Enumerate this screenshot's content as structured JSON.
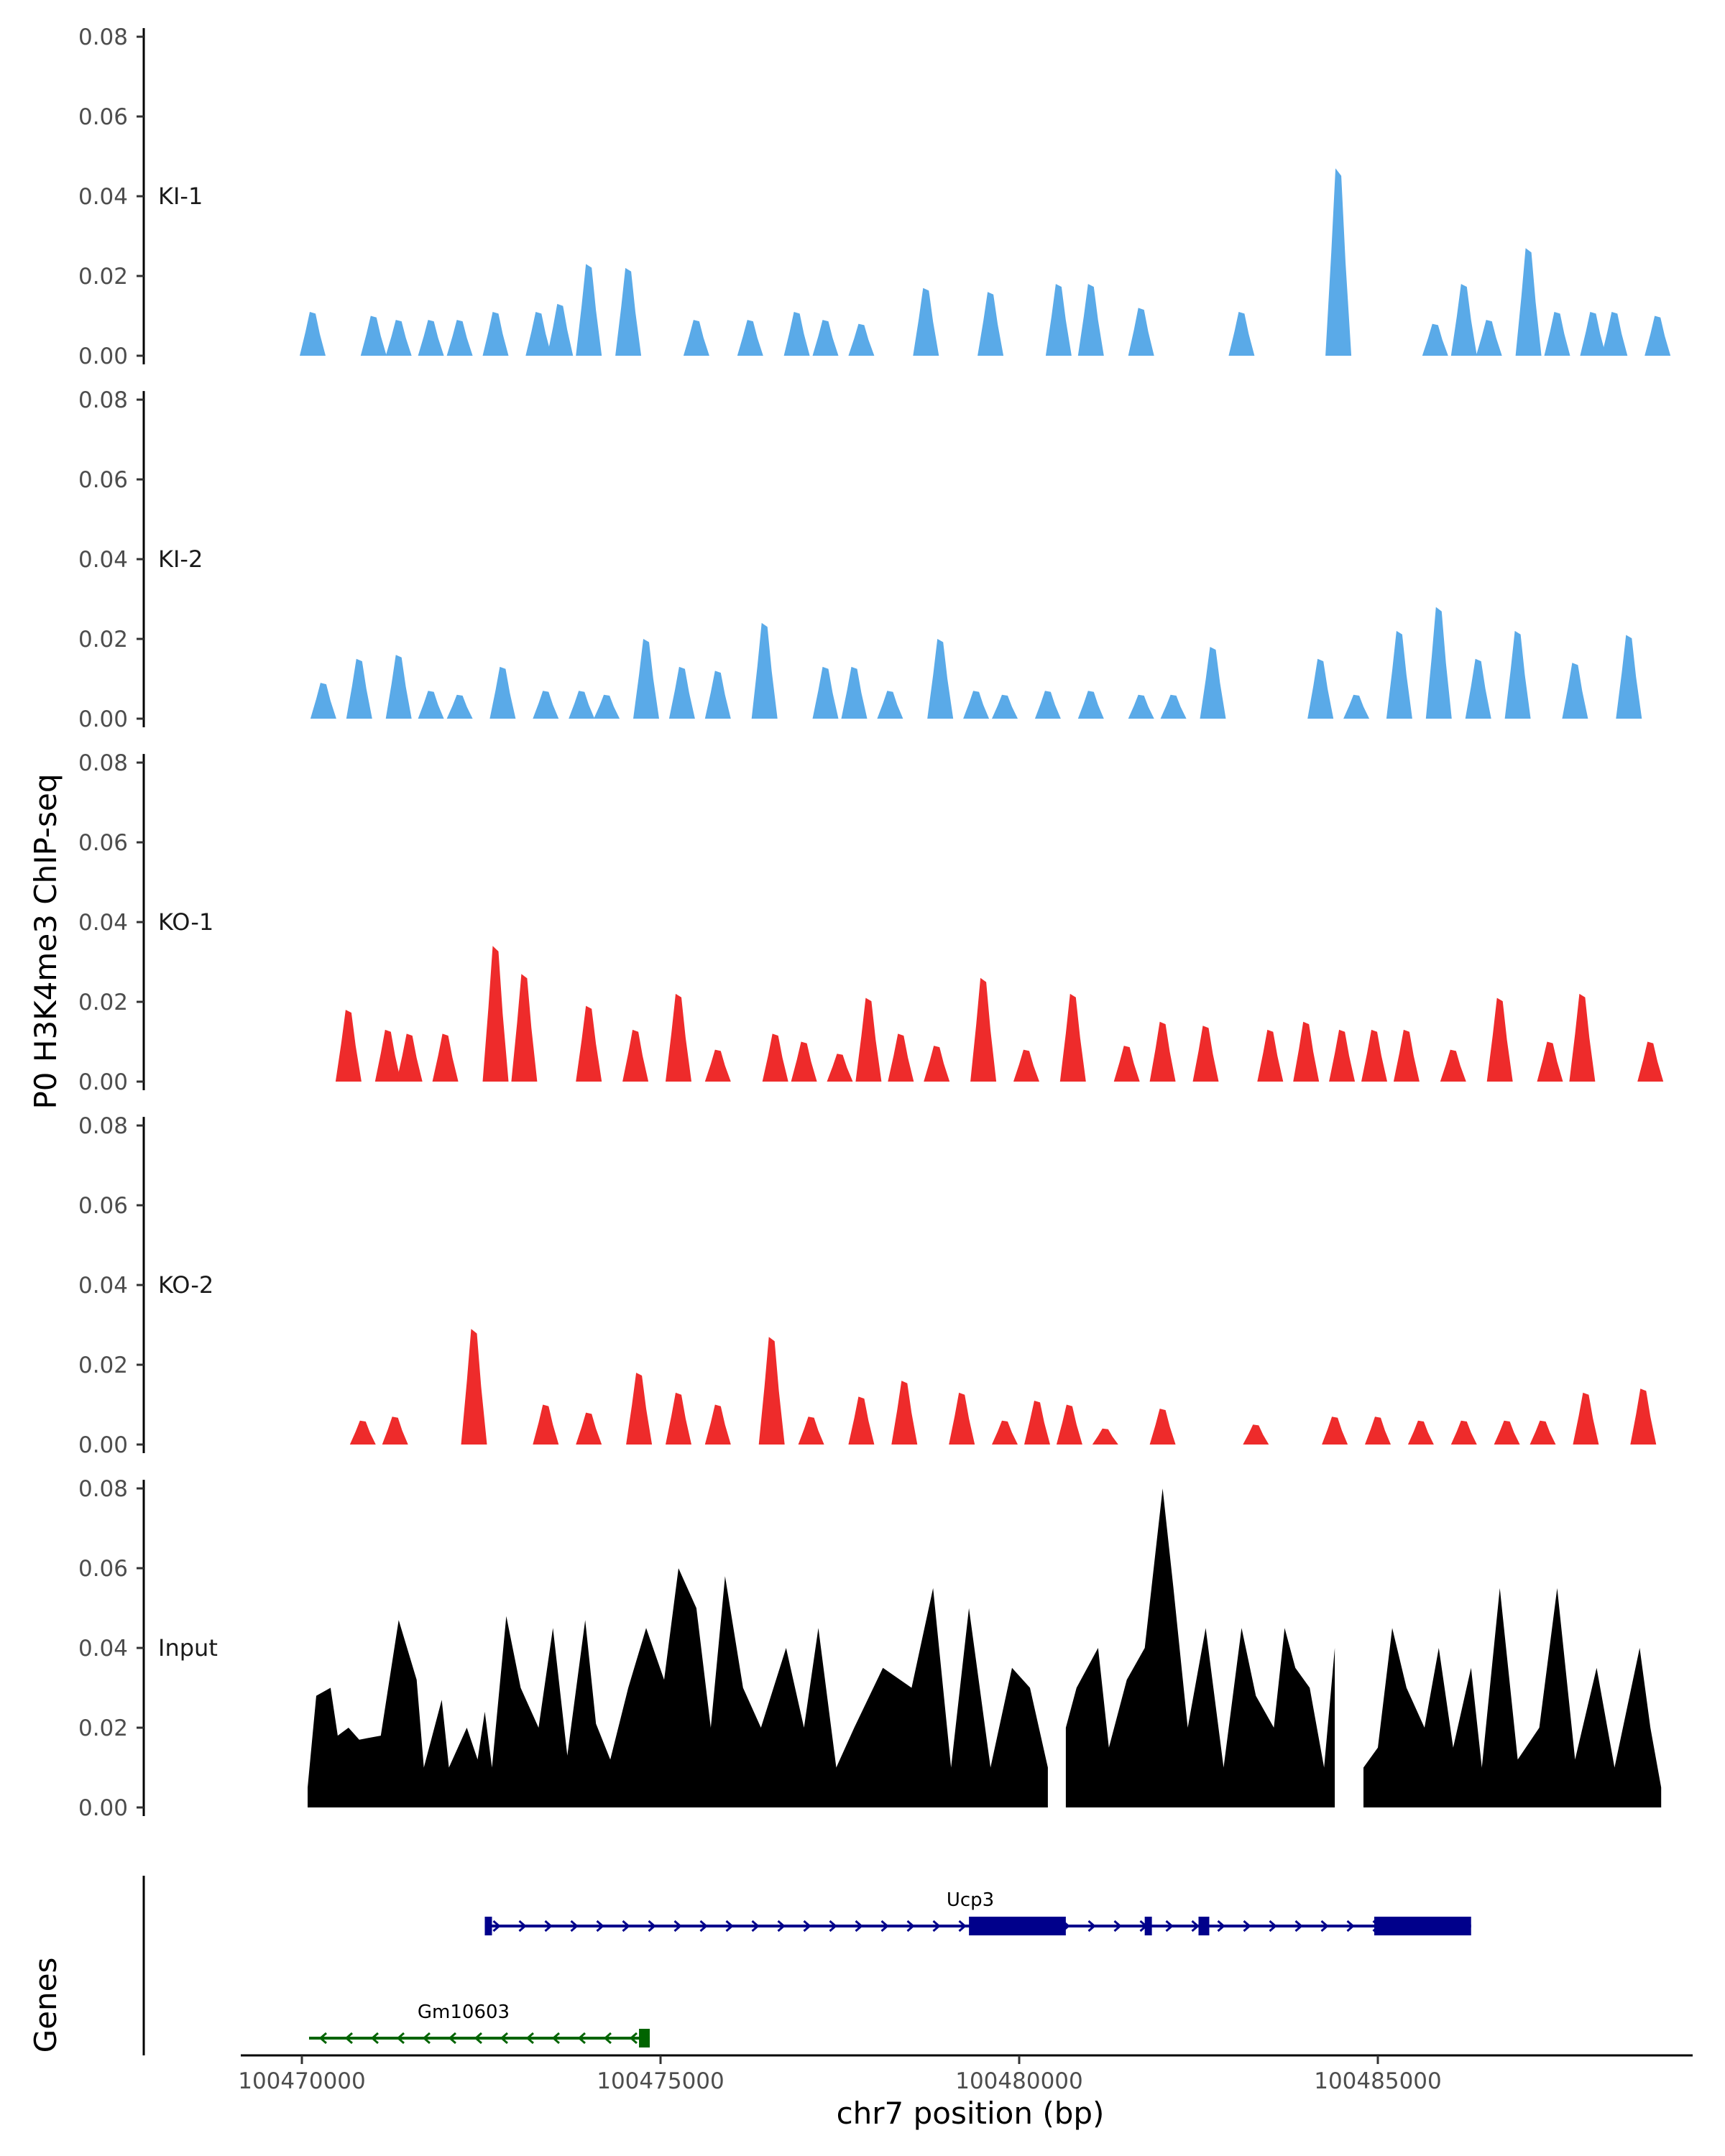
{
  "chart_data": {
    "type": "area",
    "title": "",
    "ylabel": "P0 H3K4me3 ChIP-seq",
    "xlabel": "chr7 position (bp)",
    "genes_label": "Genes",
    "xlim": [
      100469200,
      100489400
    ],
    "ylim": [
      0,
      0.082
    ],
    "x_ticks": [
      100470000,
      100475000,
      100480000,
      100485000
    ],
    "x_tick_labels": [
      "100470000",
      "100475000",
      "100480000",
      "100485000"
    ],
    "y_ticks": [
      0,
      0.02,
      0.04,
      0.06,
      0.08
    ],
    "y_tick_labels": [
      "0.00",
      "0.02",
      "0.04",
      "0.06",
      "0.08"
    ],
    "colors": {
      "KI": "#5aaae8",
      "KO": "#ee2b2b",
      "Input": "#000000",
      "gene_plus": "#00008b",
      "gene_minus": "#006400",
      "axis": "#000000"
    },
    "tracks": [
      {
        "name": "KI-1",
        "color": "#5aaae8",
        "peaks": [
          [
            100470150,
            0.011
          ],
          [
            100471000,
            0.01
          ],
          [
            100471350,
            0.009
          ],
          [
            100471800,
            0.009
          ],
          [
            100472200,
            0.009
          ],
          [
            100472700,
            0.011
          ],
          [
            100473300,
            0.011
          ],
          [
            100473600,
            0.013
          ],
          [
            100474000,
            0.023
          ],
          [
            100474550,
            0.022
          ],
          [
            100475500,
            0.009
          ],
          [
            100476250,
            0.009
          ],
          [
            100476900,
            0.011
          ],
          [
            100477300,
            0.009
          ],
          [
            100477800,
            0.008
          ],
          [
            100478700,
            0.017
          ],
          [
            100479600,
            0.016
          ],
          [
            100480550,
            0.018
          ],
          [
            100481000,
            0.018
          ],
          [
            100481700,
            0.012
          ],
          [
            100483100,
            0.011
          ],
          [
            100484450,
            0.047
          ],
          [
            100485800,
            0.008
          ],
          [
            100486200,
            0.018
          ],
          [
            100486550,
            0.009
          ],
          [
            100487100,
            0.027
          ],
          [
            100487500,
            0.011
          ],
          [
            100488000,
            0.011
          ],
          [
            100488300,
            0.011
          ],
          [
            100488900,
            0.01
          ]
        ]
      },
      {
        "name": "KI-2",
        "color": "#5aaae8",
        "peaks": [
          [
            100470300,
            0.009
          ],
          [
            100470800,
            0.015
          ],
          [
            100471350,
            0.016
          ],
          [
            100471800,
            0.007
          ],
          [
            100472200,
            0.006
          ],
          [
            100472800,
            0.013
          ],
          [
            100473400,
            0.007
          ],
          [
            100473900,
            0.007
          ],
          [
            100474250,
            0.006
          ],
          [
            100474800,
            0.02
          ],
          [
            100475300,
            0.013
          ],
          [
            100475800,
            0.012
          ],
          [
            100476450,
            0.024
          ],
          [
            100477300,
            0.013
          ],
          [
            100477700,
            0.013
          ],
          [
            100478200,
            0.007
          ],
          [
            100478900,
            0.02
          ],
          [
            100479400,
            0.007
          ],
          [
            100479800,
            0.006
          ],
          [
            100480400,
            0.007
          ],
          [
            100481000,
            0.007
          ],
          [
            100481700,
            0.006
          ],
          [
            100482150,
            0.006
          ],
          [
            100482700,
            0.018
          ],
          [
            100484200,
            0.015
          ],
          [
            100484700,
            0.006
          ],
          [
            100485300,
            0.022
          ],
          [
            100485850,
            0.028
          ],
          [
            100486400,
            0.015
          ],
          [
            100486950,
            0.022
          ],
          [
            100487750,
            0.014
          ],
          [
            100488500,
            0.021
          ]
        ]
      },
      {
        "name": "KO-1",
        "color": "#ee2b2b",
        "peaks": [
          [
            100470650,
            0.018
          ],
          [
            100471200,
            0.013
          ],
          [
            100471500,
            0.012
          ],
          [
            100472000,
            0.012
          ],
          [
            100472700,
            0.034
          ],
          [
            100473100,
            0.027
          ],
          [
            100474000,
            0.019
          ],
          [
            100474650,
            0.013
          ],
          [
            100475250,
            0.022
          ],
          [
            100475800,
            0.008
          ],
          [
            100476600,
            0.012
          ],
          [
            100477000,
            0.01
          ],
          [
            100477500,
            0.007
          ],
          [
            100477900,
            0.021
          ],
          [
            100478350,
            0.012
          ],
          [
            100478850,
            0.009
          ],
          [
            100479500,
            0.026
          ],
          [
            100480100,
            0.008
          ],
          [
            100480750,
            0.022
          ],
          [
            100481500,
            0.009
          ],
          [
            100482000,
            0.015
          ],
          [
            100482600,
            0.014
          ],
          [
            100483500,
            0.013
          ],
          [
            100484000,
            0.015
          ],
          [
            100484500,
            0.013
          ],
          [
            100484950,
            0.013
          ],
          [
            100485400,
            0.013
          ],
          [
            100486050,
            0.008
          ],
          [
            100486700,
            0.021
          ],
          [
            100487400,
            0.01
          ],
          [
            100487850,
            0.022
          ],
          [
            100488800,
            0.01
          ]
        ]
      },
      {
        "name": "KO-2",
        "color": "#ee2b2b",
        "peaks": [
          [
            100470850,
            0.006
          ],
          [
            100471300,
            0.007
          ],
          [
            100472400,
            0.029
          ],
          [
            100473400,
            0.01
          ],
          [
            100474000,
            0.008
          ],
          [
            100474700,
            0.018
          ],
          [
            100475250,
            0.013
          ],
          [
            100475800,
            0.01
          ],
          [
            100476550,
            0.027
          ],
          [
            100477100,
            0.007
          ],
          [
            100477800,
            0.012
          ],
          [
            100478400,
            0.016
          ],
          [
            100479200,
            0.013
          ],
          [
            100479800,
            0.006
          ],
          [
            100480250,
            0.011
          ],
          [
            100480700,
            0.01
          ],
          [
            100481200,
            0.004
          ],
          [
            100482000,
            0.009
          ],
          [
            100483300,
            0.005
          ],
          [
            100484400,
            0.007
          ],
          [
            100485000,
            0.007
          ],
          [
            100485600,
            0.006
          ],
          [
            100486200,
            0.006
          ],
          [
            100486800,
            0.006
          ],
          [
            100487300,
            0.006
          ],
          [
            100487900,
            0.013
          ],
          [
            100488700,
            0.014
          ]
        ]
      }
    ],
    "input_track": {
      "name": "Input",
      "color": "#000000",
      "points": [
        [
          100470080,
          0.005
        ],
        [
          100470200,
          0.028
        ],
        [
          100470400,
          0.03
        ],
        [
          100470500,
          0.018
        ],
        [
          100470650,
          0.02
        ],
        [
          100470800,
          0.017
        ],
        [
          100471100,
          0.018
        ],
        [
          100471350,
          0.047
        ],
        [
          100471600,
          0.032
        ],
        [
          100471700,
          0.01
        ],
        [
          100471950,
          0.027
        ],
        [
          100472050,
          0.01
        ],
        [
          100472300,
          0.02
        ],
        [
          100472450,
          0.012
        ],
        [
          100472550,
          0.024
        ],
        [
          100472650,
          0.01
        ],
        [
          100472850,
          0.048
        ],
        [
          100473050,
          0.03
        ],
        [
          100473300,
          0.02
        ],
        [
          100473500,
          0.045
        ],
        [
          100473700,
          0.013
        ],
        [
          100473950,
          0.047
        ],
        [
          100474100,
          0.021
        ],
        [
          100474300,
          0.012
        ],
        [
          100474550,
          0.03
        ],
        [
          100474800,
          0.045
        ],
        [
          100475050,
          0.032
        ],
        [
          100475250,
          0.06
        ],
        [
          100475500,
          0.05
        ],
        [
          100475700,
          0.02
        ],
        [
          100475900,
          0.058
        ],
        [
          100476150,
          0.03
        ],
        [
          100476400,
          0.02
        ],
        [
          100476750,
          0.04
        ],
        [
          100477000,
          0.02
        ],
        [
          100477200,
          0.045
        ],
        [
          100477450,
          0.01
        ],
        [
          100477700,
          0.02
        ],
        [
          100478100,
          0.035
        ],
        [
          100478500,
          0.03
        ],
        [
          100478800,
          0.055
        ],
        [
          100479050,
          0.01
        ],
        [
          100479300,
          0.05
        ],
        [
          100479600,
          0.01
        ],
        [
          100479900,
          0.035
        ],
        [
          100480150,
          0.03
        ],
        [
          100480400,
          0.01
        ],
        [
          100480650,
          0.02
        ],
        [
          100480800,
          0.03
        ],
        [
          100481100,
          0.04
        ],
        [
          100481250,
          0.015
        ],
        [
          100481500,
          0.032
        ],
        [
          100481750,
          0.04
        ],
        [
          100482000,
          0.08
        ],
        [
          100482150,
          0.055
        ],
        [
          100482350,
          0.02
        ],
        [
          100482600,
          0.045
        ],
        [
          100482850,
          0.01
        ],
        [
          100483100,
          0.045
        ],
        [
          100483300,
          0.028
        ],
        [
          100483550,
          0.02
        ],
        [
          100483700,
          0.045
        ],
        [
          100483850,
          0.035
        ],
        [
          100484050,
          0.03
        ],
        [
          100484250,
          0.01
        ],
        [
          100484400,
          0.04
        ],
        [
          100484800,
          0.01
        ],
        [
          100485000,
          0.015
        ],
        [
          100485200,
          0.045
        ],
        [
          100485400,
          0.03
        ],
        [
          100485650,
          0.02
        ],
        [
          100485850,
          0.04
        ],
        [
          100486050,
          0.015
        ],
        [
          100486300,
          0.035
        ],
        [
          100486450,
          0.01
        ],
        [
          100486700,
          0.055
        ],
        [
          100486950,
          0.012
        ],
        [
          100487250,
          0.02
        ],
        [
          100487500,
          0.055
        ],
        [
          100487750,
          0.012
        ],
        [
          100488050,
          0.035
        ],
        [
          100488300,
          0.01
        ],
        [
          100488650,
          0.04
        ],
        [
          100488800,
          0.02
        ],
        [
          100488950,
          0.005
        ]
      ]
    },
    "genes": [
      {
        "name": "Ucp3",
        "strand": "+",
        "start": 100472550,
        "end": 100486300,
        "exons": [
          [
            100472550,
            100472650
          ],
          [
            100479300,
            100480650
          ],
          [
            100481750,
            100481850
          ],
          [
            100482500,
            100482650
          ],
          [
            100484950,
            100486300
          ]
        ]
      },
      {
        "name": "Gm10603",
        "strand": "-",
        "start": 100470100,
        "end": 100474850,
        "exons": [
          [
            100474700,
            100474850
          ]
        ]
      }
    ]
  }
}
